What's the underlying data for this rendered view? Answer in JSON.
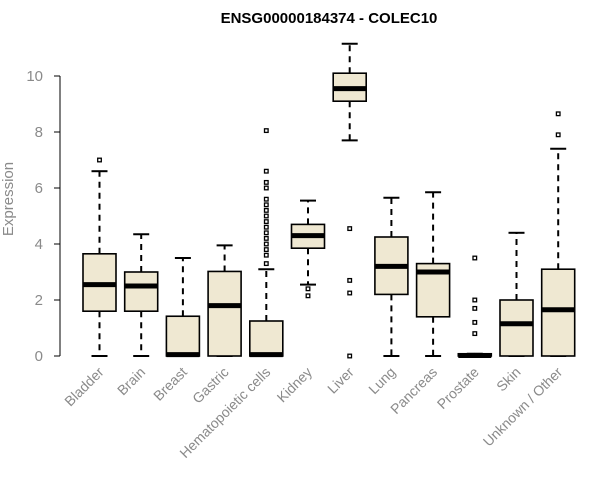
{
  "chart_data": {
    "type": "boxplot",
    "title": "ENSG00000184374 - COLEC10",
    "xlabel": "",
    "ylabel": "Expression",
    "ylim": [
      0,
      11.2
    ],
    "yticks": [
      0,
      2,
      4,
      6,
      8,
      10
    ],
    "grid": false,
    "colors": {
      "box_fill": "#efe8d2",
      "stroke": "#000000",
      "axis_text": "#8a8a8a"
    },
    "categories": [
      "Bladder",
      "Brain",
      "Breast",
      "Gastric",
      "Hematopoietic cells",
      "Kidney",
      "Liver",
      "Lung",
      "Pancreas",
      "Prostate",
      "Skin",
      "Unknown / Other"
    ],
    "boxes": [
      {
        "category": "Bladder",
        "whisker_low": 0,
        "q1": 1.6,
        "median": 2.55,
        "q3": 3.65,
        "whisker_high": 6.6,
        "outliers": [
          7.0
        ]
      },
      {
        "category": "Brain",
        "whisker_low": 0,
        "q1": 1.6,
        "median": 2.5,
        "q3": 3.0,
        "whisker_high": 4.35,
        "outliers": []
      },
      {
        "category": "Breast",
        "whisker_low": 0,
        "q1": 0,
        "median": 0.05,
        "q3": 1.42,
        "whisker_high": 3.5,
        "outliers": []
      },
      {
        "category": "Gastric",
        "whisker_low": 0,
        "q1": 0,
        "median": 1.8,
        "q3": 3.02,
        "whisker_high": 3.95,
        "outliers": []
      },
      {
        "category": "Hematopoietic cells",
        "whisker_low": 0,
        "q1": 0,
        "median": 0.05,
        "q3": 1.25,
        "whisker_high": 3.1,
        "outliers": [
          3.3,
          3.6,
          3.8,
          4.0,
          4.2,
          4.4,
          4.6,
          4.8,
          5.0,
          5.2,
          5.4,
          5.6,
          6.0,
          6.2,
          6.6,
          8.05
        ]
      },
      {
        "category": "Kidney",
        "whisker_low": 2.55,
        "q1": 3.85,
        "median": 4.3,
        "q3": 4.7,
        "whisker_high": 5.55,
        "outliers": [
          2.15,
          2.4
        ]
      },
      {
        "category": "Liver",
        "whisker_low": 7.7,
        "q1": 9.1,
        "median": 9.55,
        "q3": 10.1,
        "whisker_high": 11.15,
        "outliers": [
          0.0,
          2.25,
          2.7,
          4.55
        ]
      },
      {
        "category": "Lung",
        "whisker_low": 0,
        "q1": 2.2,
        "median": 3.2,
        "q3": 4.25,
        "whisker_high": 5.65,
        "outliers": []
      },
      {
        "category": "Pancreas",
        "whisker_low": 0,
        "q1": 1.4,
        "median": 3.0,
        "q3": 3.3,
        "whisker_high": 5.85,
        "outliers": []
      },
      {
        "category": "Prostate",
        "whisker_low": 0,
        "q1": 0,
        "median": 0.02,
        "q3": 0.08,
        "whisker_high": 0.08,
        "outliers": [
          0.8,
          1.2,
          1.7,
          2.0,
          3.5
        ]
      },
      {
        "category": "Skin",
        "whisker_low": 0,
        "q1": 0,
        "median": 1.15,
        "q3": 2.0,
        "whisker_high": 4.4,
        "outliers": []
      },
      {
        "category": "Unknown / Other",
        "whisker_low": 0,
        "q1": 0,
        "median": 1.65,
        "q3": 3.1,
        "whisker_high": 7.4,
        "outliers": [
          7.9,
          8.65
        ]
      }
    ]
  }
}
